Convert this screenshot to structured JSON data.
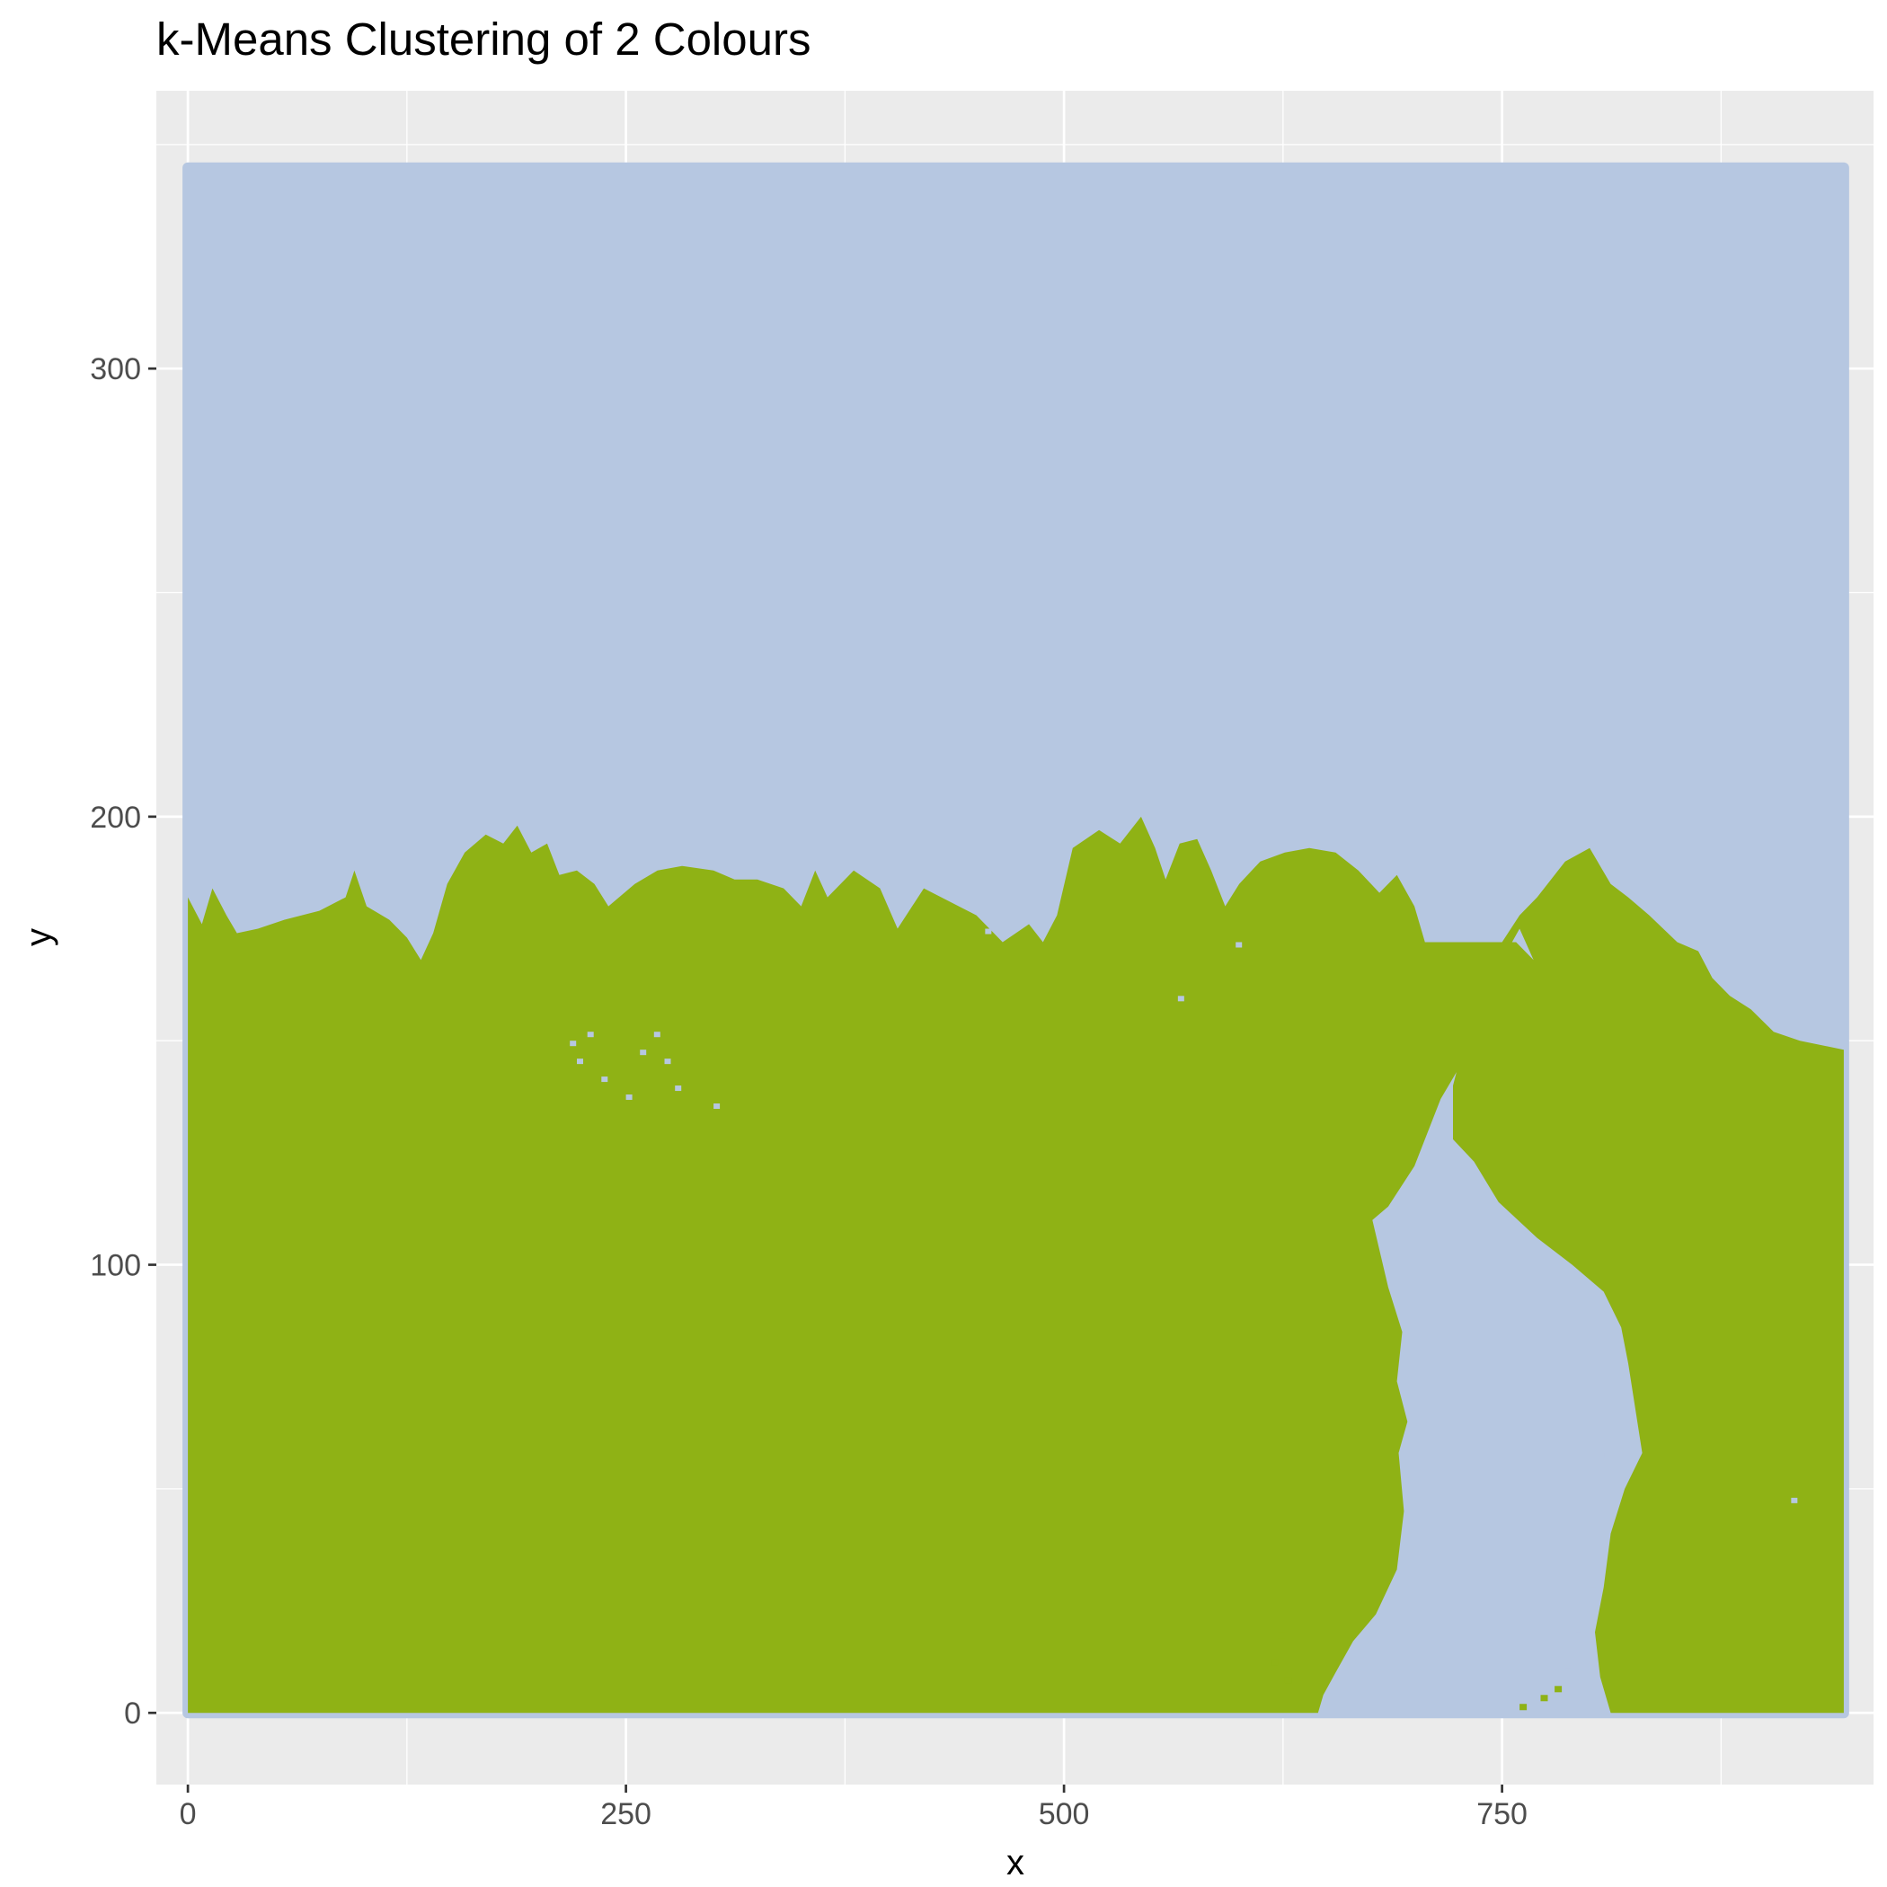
{
  "chart_data": {
    "type": "scatter",
    "title": "k-Means Clustering of 2 Colours",
    "xlabel": "x",
    "ylabel": "y",
    "xlim": [
      -18,
      962
    ],
    "ylim": [
      -16,
      362
    ],
    "x_ticks": [
      0,
      250,
      500,
      750
    ],
    "y_ticks": [
      0,
      100,
      200,
      300
    ],
    "x_tick_labels": [
      "0",
      "250",
      "500",
      "750"
    ],
    "y_tick_labels": [
      "0",
      "100",
      "200",
      "300"
    ],
    "grid": true,
    "legend": "none",
    "image_extent": {
      "x": [
        0,
        945
      ],
      "y": [
        0,
        346
      ]
    },
    "clusters": [
      {
        "color": "#B6C7E1",
        "region": "sky and river"
      },
      {
        "color": "#8FB215",
        "region": "land and trees"
      }
    ],
    "land_upper_boundary": [
      [
        0,
        182
      ],
      [
        8,
        176
      ],
      [
        14,
        184
      ],
      [
        22,
        178
      ],
      [
        28,
        174
      ],
      [
        40,
        175
      ],
      [
        55,
        177
      ],
      [
        75,
        179
      ],
      [
        90,
        182
      ],
      [
        95,
        188
      ],
      [
        102,
        180
      ],
      [
        115,
        177
      ],
      [
        125,
        173
      ],
      [
        133,
        168
      ],
      [
        140,
        174
      ],
      [
        148,
        185
      ],
      [
        158,
        192
      ],
      [
        170,
        196
      ],
      [
        180,
        194
      ],
      [
        188,
        198
      ],
      [
        196,
        192
      ],
      [
        205,
        194
      ],
      [
        212,
        187
      ],
      [
        222,
        188
      ],
      [
        232,
        185
      ],
      [
        240,
        180
      ],
      [
        255,
        185
      ],
      [
        268,
        188
      ],
      [
        282,
        189
      ],
      [
        300,
        188
      ],
      [
        312,
        186
      ],
      [
        325,
        186
      ],
      [
        340,
        184
      ],
      [
        350,
        180
      ],
      [
        358,
        188
      ],
      [
        365,
        182
      ],
      [
        380,
        188
      ],
      [
        395,
        184
      ],
      [
        405,
        175
      ],
      [
        420,
        184
      ],
      [
        440,
        180
      ],
      [
        450,
        178
      ],
      [
        465,
        172
      ],
      [
        480,
        176
      ],
      [
        488,
        172
      ],
      [
        496,
        178
      ],
      [
        505,
        193
      ],
      [
        520,
        197
      ],
      [
        532,
        194
      ],
      [
        544,
        200
      ],
      [
        552,
        193
      ],
      [
        558,
        186
      ],
      [
        566,
        194
      ],
      [
        576,
        195
      ],
      [
        584,
        188
      ],
      [
        592,
        180
      ],
      [
        600,
        185
      ],
      [
        612,
        190
      ],
      [
        626,
        192
      ],
      [
        640,
        193
      ],
      [
        655,
        192
      ],
      [
        668,
        188
      ],
      [
        680,
        183
      ],
      [
        690,
        187
      ],
      [
        700,
        180
      ],
      [
        706,
        172
      ],
      [
        722,
        172
      ],
      [
        745,
        172
      ],
      [
        758,
        172
      ],
      [
        768,
        168
      ],
      [
        760,
        175
      ],
      [
        750,
        168
      ],
      [
        768,
        162
      ],
      [
        780,
        155
      ],
      [
        788,
        152
      ],
      [
        776,
        153
      ],
      [
        762,
        160
      ],
      [
        745,
        154
      ],
      [
        727,
        145
      ],
      [
        715,
        137
      ],
      [
        700,
        122
      ],
      [
        685,
        113
      ],
      [
        676,
        110
      ],
      [
        685,
        95
      ],
      [
        693,
        85
      ],
      [
        690,
        74
      ],
      [
        696,
        65
      ],
      [
        691,
        58
      ],
      [
        694,
        45
      ],
      [
        690,
        32
      ],
      [
        678,
        22
      ],
      [
        665,
        16
      ],
      [
        655,
        9
      ],
      [
        648,
        4
      ],
      [
        645,
        0
      ]
    ],
    "river_right_bank": [
      [
        812,
        0
      ],
      [
        806,
        8
      ],
      [
        803,
        18
      ],
      [
        808,
        28
      ],
      [
        812,
        40
      ],
      [
        820,
        50
      ],
      [
        830,
        58
      ],
      [
        826,
        68
      ],
      [
        822,
        78
      ],
      [
        818,
        86
      ],
      [
        808,
        94
      ],
      [
        790,
        100
      ],
      [
        770,
        106
      ],
      [
        748,
        114
      ],
      [
        734,
        123
      ],
      [
        722,
        128
      ],
      [
        722,
        140
      ],
      [
        730,
        152
      ],
      [
        742,
        161
      ],
      [
        746,
        165
      ],
      [
        742,
        170
      ]
    ],
    "right_treeline": [
      [
        742,
        170
      ],
      [
        750,
        172
      ],
      [
        760,
        178
      ],
      [
        770,
        182
      ],
      [
        786,
        190
      ],
      [
        800,
        193
      ],
      [
        812,
        185
      ],
      [
        822,
        182
      ],
      [
        834,
        178
      ],
      [
        850,
        172
      ],
      [
        862,
        170
      ],
      [
        870,
        164
      ],
      [
        880,
        160
      ],
      [
        892,
        157
      ],
      [
        905,
        152
      ],
      [
        920,
        150
      ],
      [
        945,
        148
      ]
    ]
  }
}
